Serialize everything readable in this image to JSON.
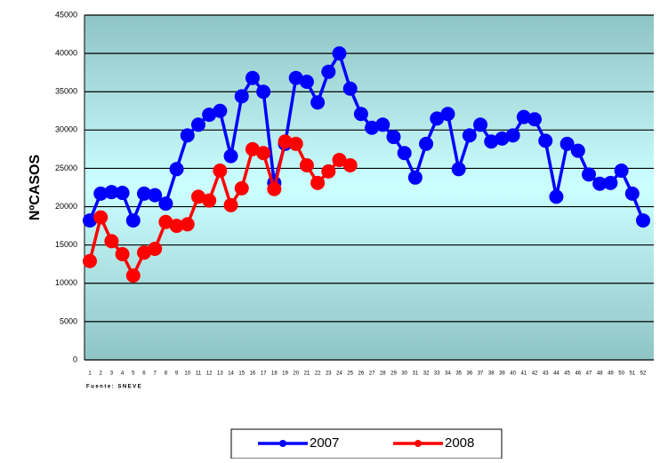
{
  "chart_data": {
    "type": "line",
    "y_label": "NºCASOS",
    "source": "Fuente: SNEVE",
    "categories": [
      1,
      2,
      3,
      4,
      5,
      6,
      7,
      8,
      9,
      10,
      11,
      12,
      13,
      14,
      15,
      16,
      17,
      18,
      19,
      20,
      21,
      22,
      23,
      24,
      25,
      26,
      27,
      28,
      29,
      30,
      31,
      32,
      33,
      34,
      35,
      36,
      37,
      38,
      39,
      40,
      41,
      42,
      43,
      44,
      45,
      46,
      47,
      48,
      49,
      50,
      51,
      52
    ],
    "series": [
      {
        "name": "2007",
        "color": "#0000ff",
        "values": [
          18200,
          21700,
          21900,
          21800,
          18200,
          21700,
          21500,
          20400,
          24900,
          29300,
          30700,
          32000,
          32500,
          26600,
          34400,
          36800,
          35000,
          23100,
          28200,
          36800,
          36300,
          33600,
          37600,
          40000,
          35400,
          32100,
          30300,
          30700,
          29100,
          27000,
          23800,
          28200,
          31500,
          32100,
          24900,
          29300,
          30700,
          28500,
          28900,
          29300,
          31700,
          31400,
          28600,
          21300,
          28200,
          27300,
          24200,
          23000,
          23100,
          24700,
          21700,
          18200
        ]
      },
      {
        "name": "2008",
        "color": "#ff0000",
        "values": [
          12900,
          18600,
          15500,
          13800,
          11000,
          14000,
          14500,
          18000,
          17500,
          17700,
          21300,
          20800,
          24700,
          20200,
          22400,
          27500,
          27000,
          22300,
          28500,
          28200,
          25400,
          23100,
          24600,
          26100,
          25400,
          null,
          null,
          null,
          null,
          null,
          null,
          null,
          null,
          null,
          null,
          null,
          null,
          null,
          null,
          null,
          null,
          null,
          null,
          null,
          null,
          null,
          null,
          null,
          null,
          null,
          null,
          null
        ]
      }
    ],
    "ylim": [
      0,
      45000
    ],
    "yticks": [
      0,
      5000,
      10000,
      15000,
      20000,
      25000,
      30000,
      35000,
      40000,
      45000
    ],
    "grid": true,
    "legend": "bottom"
  }
}
